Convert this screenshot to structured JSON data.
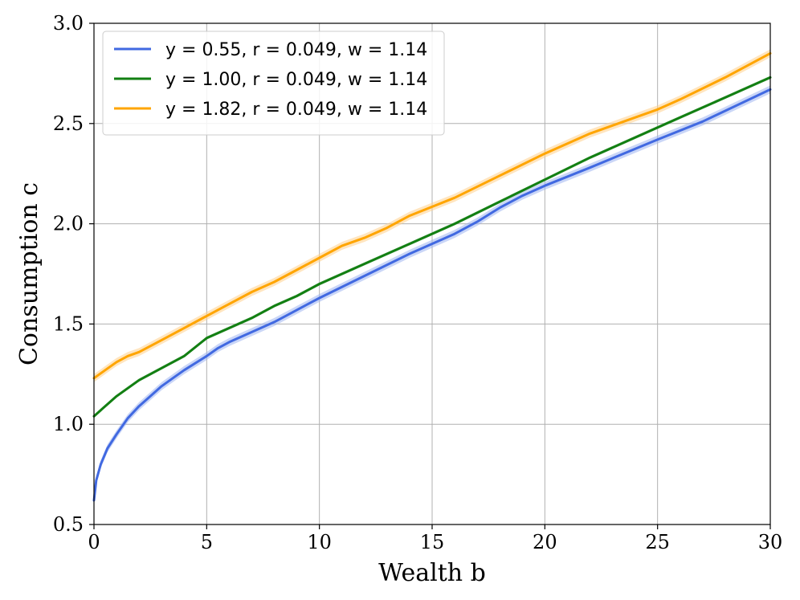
{
  "chart_data": {
    "type": "line",
    "title": "",
    "xlabel": "Wealth b",
    "ylabel": "Consumption c",
    "xlim": [
      0,
      30
    ],
    "ylim": [
      0.5,
      3.0
    ],
    "xticks": [
      0,
      5,
      10,
      15,
      20,
      25,
      30
    ],
    "xtick_labels": [
      "0",
      "5",
      "10",
      "15",
      "20",
      "25",
      "30"
    ],
    "yticks": [
      0.5,
      1.0,
      1.5,
      2.0,
      2.5,
      3.0
    ],
    "ytick_labels": [
      "0.5",
      "1.0",
      "1.5",
      "2.0",
      "2.5",
      "3.0"
    ],
    "grid": true,
    "legend_position": "top-left",
    "series": [
      {
        "name": "y = 0.55, r = 0.049, w = 1.14",
        "color": "#4169e1",
        "band_color": "#9fb4f0",
        "x": [
          0,
          0.1,
          0.3,
          0.6,
          1.0,
          1.5,
          2.0,
          2.5,
          3.0,
          3.5,
          4.0,
          5.0,
          5.5,
          6.0,
          7.0,
          8.0,
          8.5,
          9.0,
          10.0,
          12.0,
          14.0,
          16.0,
          17.0,
          18.0,
          19.0,
          20.0,
          22.0,
          25.0,
          27.0,
          30.0
        ],
        "y": [
          0.62,
          0.72,
          0.8,
          0.88,
          0.95,
          1.03,
          1.09,
          1.14,
          1.19,
          1.23,
          1.27,
          1.34,
          1.38,
          1.41,
          1.46,
          1.51,
          1.54,
          1.57,
          1.63,
          1.74,
          1.85,
          1.95,
          2.01,
          2.08,
          2.14,
          2.19,
          2.28,
          2.42,
          2.51,
          2.67
        ],
        "band": 0.02
      },
      {
        "name": "y = 1.00, r = 0.049, w = 1.14",
        "color": "#127f12",
        "band_color": "#8fc48f",
        "x": [
          0,
          0.3,
          0.6,
          1.0,
          1.5,
          2.0,
          3.0,
          4.0,
          5.0,
          6.0,
          7.0,
          8.0,
          9.0,
          10.0,
          12.0,
          14.0,
          16.0,
          18.0,
          20.0,
          22.0,
          24.0,
          26.0,
          28.0,
          30.0
        ],
        "y": [
          1.04,
          1.07,
          1.1,
          1.14,
          1.18,
          1.22,
          1.28,
          1.34,
          1.43,
          1.48,
          1.53,
          1.59,
          1.64,
          1.7,
          1.8,
          1.9,
          2.0,
          2.11,
          2.22,
          2.33,
          2.43,
          2.53,
          2.63,
          2.73
        ],
        "band": 0.008
      },
      {
        "name": "y = 1.82, r = 0.049, w = 1.14",
        "color": "#ffa500",
        "band_color": "#ffd08a",
        "x": [
          0,
          0.5,
          1.0,
          1.5,
          2.0,
          3.0,
          4.0,
          5.0,
          6.0,
          7.0,
          8.0,
          9.0,
          10.0,
          11.0,
          12.0,
          13.0,
          14.0,
          16.0,
          18.0,
          20.0,
          22.0,
          23.0,
          24.0,
          25.0,
          26.0,
          28.0,
          30.0
        ],
        "y": [
          1.23,
          1.27,
          1.31,
          1.34,
          1.36,
          1.42,
          1.48,
          1.54,
          1.6,
          1.66,
          1.71,
          1.77,
          1.83,
          1.89,
          1.93,
          1.98,
          2.04,
          2.13,
          2.24,
          2.35,
          2.45,
          2.49,
          2.53,
          2.57,
          2.62,
          2.73,
          2.85
        ],
        "band": 0.02
      }
    ]
  }
}
